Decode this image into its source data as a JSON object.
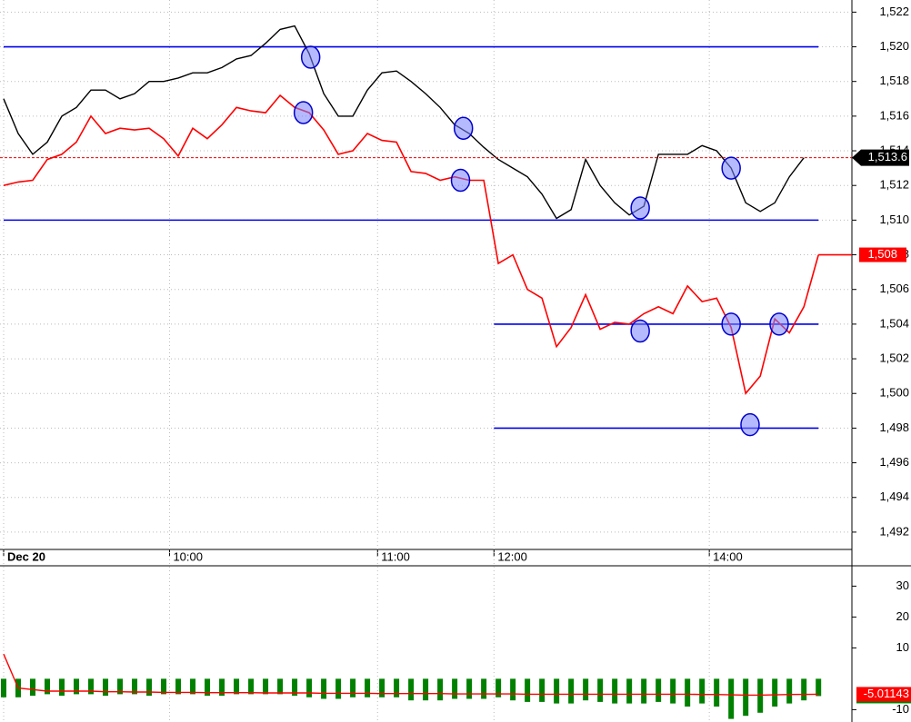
{
  "chart_data": [
    {
      "type": "line",
      "xlim": [
        -0.25,
        58.3
      ],
      "ylim": [
        1491.0,
        1522.7
      ],
      "yticks": [
        {
          "value": 1492,
          "label": "1,492"
        },
        {
          "value": 1494,
          "label": "1,494"
        },
        {
          "value": 1496,
          "label": "1,496"
        },
        {
          "value": 1498,
          "label": "1,498"
        },
        {
          "value": 1500,
          "label": "1,500"
        },
        {
          "value": 1502,
          "label": "1,502"
        },
        {
          "value": 1504,
          "label": "1,504"
        },
        {
          "value": 1506,
          "label": "1,506"
        },
        {
          "value": 1508,
          "label": "1,508"
        },
        {
          "value": 1510,
          "label": "1,510"
        },
        {
          "value": 1512,
          "label": "1,512"
        },
        {
          "value": 1514,
          "label": "1,514"
        },
        {
          "value": 1516,
          "label": "1,516"
        },
        {
          "value": 1518,
          "label": "1,518"
        },
        {
          "value": 1520,
          "label": "1,520"
        },
        {
          "value": 1522,
          "label": "1,522"
        }
      ],
      "xticks": [
        {
          "value": 0,
          "label": "Dec 20"
        },
        {
          "value": 11.4,
          "label": "10:00"
        },
        {
          "value": 25.7,
          "label": "11:00"
        },
        {
          "value": 33.7,
          "label": "12:00"
        },
        {
          "value": 48.5,
          "label": "14:00"
        }
      ],
      "grid": true,
      "series": [
        {
          "color": "#ff0000",
          "last_label": "1,508",
          "values": [
            1512,
            1512.2,
            1512.3,
            1513.5,
            1513.8,
            1514.5,
            1516,
            1515,
            1515.3,
            1515.2,
            1515.3,
            1514.7,
            1513.7,
            1515.3,
            1514.7,
            1515.5,
            1516.5,
            1516.3,
            1516.2,
            1517.2,
            1516.5,
            1516.2,
            1515.2,
            1513.8,
            1514,
            1515,
            1514.6,
            1514.5,
            1512.8,
            1512.7,
            1512.3,
            1512.5,
            1512.3,
            1512.3,
            1507.5,
            1508,
            1506,
            1505.5,
            1502.7,
            1503.8,
            1505.7,
            1503.7,
            1504.1,
            1504,
            1504.6,
            1505,
            1504.6,
            1506.2,
            1505.3,
            1505.5,
            1503.8,
            1500,
            1501,
            1504.3,
            1503.5,
            1505,
            1508
          ]
        },
        {
          "color": "#000000",
          "last_label": "1,513.6",
          "values": [
            1517,
            1515,
            1513.8,
            1514.5,
            1516,
            1516.5,
            1517.5,
            1517.5,
            1517,
            1517.3,
            1518,
            1518,
            1518.2,
            1518.5,
            1518.5,
            1518.8,
            1519.3,
            1519.5,
            1520.2,
            1521,
            1521.2,
            1519.6,
            1517.3,
            1516,
            1516,
            1517.5,
            1518.5,
            1518.6,
            1518,
            1517.3,
            1516.5,
            1515.5,
            1515,
            1514.2,
            1513.5,
            1513,
            1512.5,
            1511.5,
            1510.1,
            1510.6,
            1513.5,
            1512,
            1511,
            1510.3,
            1510.8,
            1513.8,
            1513.8,
            1513.8,
            1514.3,
            1514,
            1513,
            1511,
            1510.5,
            1511,
            1512.5,
            1513.6,
            null
          ]
        }
      ],
      "level_color": "#0000ee",
      "levels": [
        {
          "value": 1520,
          "x": [
            0,
            56
          ]
        },
        {
          "value": 1510,
          "x": [
            0,
            56
          ]
        },
        {
          "value": 1504,
          "x": [
            33.7,
            56
          ]
        },
        {
          "value": 1498,
          "x": [
            33.7,
            56
          ]
        }
      ],
      "marker_color": "#0000cc",
      "markers": [
        {
          "x": 21.1,
          "y": 1519.4
        },
        {
          "x": 20.6,
          "y": 1516.2
        },
        {
          "x": 31.6,
          "y": 1515.3
        },
        {
          "x": 31.4,
          "y": 1512.3
        },
        {
          "x": 43.75,
          "y": 1510.7
        },
        {
          "x": 43.75,
          "y": 1503.6
        },
        {
          "x": 50,
          "y": 1513
        },
        {
          "x": 50,
          "y": 1504
        },
        {
          "x": 53.3,
          "y": 1504
        },
        {
          "x": 51.3,
          "y": 1498.2
        }
      ]
    },
    {
      "type": "bar",
      "xlim": [
        -0.25,
        58.3
      ],
      "ylim": [
        -14,
        36
      ],
      "yticks": [
        30,
        20,
        10,
        -10
      ],
      "series": [
        {
          "color": "#008000",
          "values": [
            -6,
            -6,
            -5.5,
            -5,
            -5.5,
            -5,
            -5,
            -5.5,
            -5,
            -5,
            -5.5,
            -5,
            -5,
            -5,
            -5.5,
            -5.5,
            -5,
            -5,
            -5,
            -5,
            -5.5,
            -6,
            -6.5,
            -6.5,
            -6,
            -6,
            -6,
            -6,
            -7,
            -7,
            -7,
            -6.5,
            -6.5,
            -6.5,
            -6,
            -7,
            -7.5,
            -7.5,
            -8,
            -8,
            -7,
            -7.5,
            -8,
            -8,
            -8,
            -7.5,
            -8,
            -9,
            -8,
            -9,
            -13,
            -12,
            -11,
            -9,
            -8,
            -7,
            -5.59998
          ]
        },
        {
          "color": "#ff0000",
          "values": [
            8,
            -3,
            -3.5,
            -4,
            -4,
            -4,
            -4,
            -4.2,
            -4.2,
            -4.3,
            -4.3,
            -4.4,
            -4.4,
            -4.4,
            -4.5,
            -4.5,
            -4.5,
            -4.5,
            -4.6,
            -4.6,
            -4.6,
            -4.6,
            -4.7,
            -4.7,
            -4.7,
            -4.7,
            -4.8,
            -4.8,
            -4.8,
            -4.8,
            -4.8,
            -4.9,
            -4.9,
            -4.9,
            -4.9,
            -4.9,
            -5,
            -5,
            -5,
            -5,
            -5,
            -5,
            -5,
            -5,
            -5,
            -5,
            -5,
            -5,
            -5.1,
            -5.1,
            -5.2,
            -5.3,
            -5.3,
            -5.2,
            -5.1,
            -5.05,
            -5.01143
          ]
        }
      ]
    }
  ]
}
